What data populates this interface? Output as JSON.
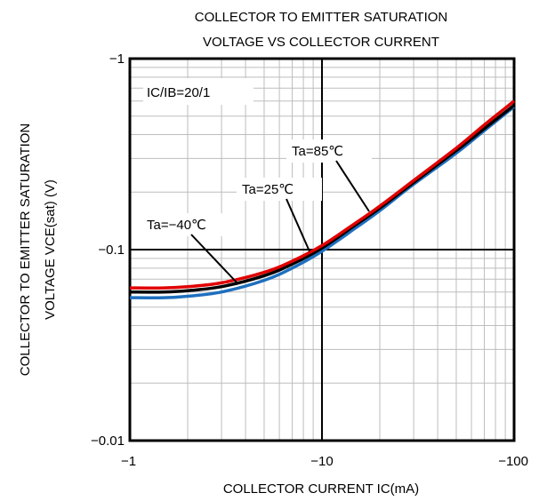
{
  "chart_data": {
    "type": "line",
    "title": [
      "COLLECTOR TO EMITTER SATURATION",
      "VOLTAGE VS COLLECTOR CURRENT"
    ],
    "xlabel": "COLLECTOR CURRENT  IC(mA)",
    "ylabel": [
      "COLLECTOR TO EMITTER SATURATION",
      "VOLTAGE VCE(sat) (V)"
    ],
    "x_scale": "log",
    "y_scale": "log",
    "xlim": [
      1,
      100
    ],
    "ylim": [
      0.01,
      1
    ],
    "x_ticks": [
      {
        "value": 1,
        "label": "−1"
      },
      {
        "value": 10,
        "label": "−10"
      },
      {
        "value": 100,
        "label": "−100"
      }
    ],
    "y_ticks": [
      {
        "value": 1,
        "label": "−1"
      },
      {
        "value": 0.1,
        "label": "−0.1"
      },
      {
        "value": 0.01,
        "label": "−0.01"
      }
    ],
    "grid": true,
    "condition_label": "IC/IB=20/1",
    "series": [
      {
        "name": "Ta=−40℃",
        "color": "#1e6fbf",
        "x": [
          1,
          1.5,
          2,
          3,
          5,
          7,
          10,
          15,
          20,
          30,
          50,
          70,
          100
        ],
        "y": [
          0.056,
          0.056,
          0.057,
          0.06,
          0.069,
          0.08,
          0.098,
          0.13,
          0.16,
          0.22,
          0.32,
          0.42,
          0.56
        ]
      },
      {
        "name": "Ta=25℃",
        "color": "#000000",
        "x": [
          1,
          1.5,
          2,
          3,
          5,
          7,
          10,
          15,
          20,
          30,
          50,
          70,
          100
        ],
        "y": [
          0.06,
          0.06,
          0.061,
          0.064,
          0.073,
          0.084,
          0.102,
          0.135,
          0.165,
          0.225,
          0.33,
          0.43,
          0.57
        ]
      },
      {
        "name": "Ta=85℃",
        "color": "#e00000",
        "x": [
          1,
          1.5,
          2,
          3,
          5,
          7,
          10,
          15,
          20,
          30,
          50,
          70,
          100
        ],
        "y": [
          0.063,
          0.063,
          0.064,
          0.067,
          0.076,
          0.087,
          0.105,
          0.138,
          0.169,
          0.23,
          0.34,
          0.45,
          0.6
        ]
      }
    ]
  }
}
